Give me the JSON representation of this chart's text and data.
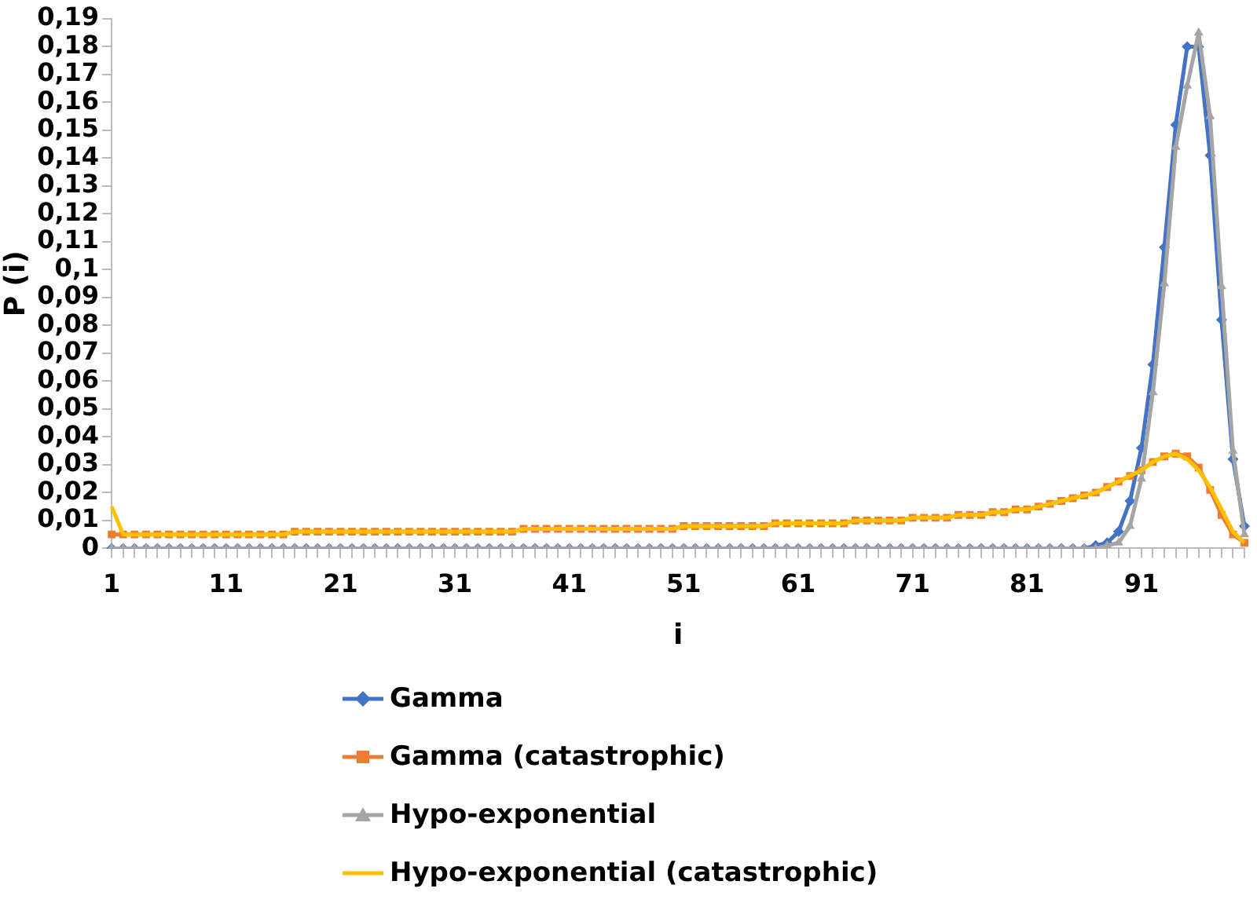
{
  "chart_data": {
    "type": "line",
    "xlabel": "i",
    "ylabel": "P (i)",
    "categories": [
      "1",
      null,
      null,
      null,
      null,
      null,
      null,
      null,
      null,
      null,
      "11",
      null,
      null,
      null,
      null,
      null,
      null,
      null,
      null,
      null,
      "21",
      null,
      null,
      null,
      null,
      null,
      null,
      null,
      null,
      null,
      "31",
      null,
      null,
      null,
      null,
      null,
      null,
      null,
      null,
      null,
      "41",
      null,
      null,
      null,
      null,
      null,
      null,
      null,
      null,
      null,
      "51",
      null,
      null,
      null,
      null,
      null,
      null,
      null,
      null,
      null,
      "61",
      null,
      null,
      null,
      null,
      null,
      null,
      null,
      null,
      null,
      "71",
      null,
      null,
      null,
      null,
      null,
      null,
      null,
      null,
      null,
      "81",
      null,
      null,
      null,
      null,
      null,
      null,
      null,
      null,
      null,
      "91",
      null,
      null,
      null,
      null,
      null,
      null,
      null,
      null,
      null
    ],
    "ylim": [
      0,
      0.19
    ],
    "yticks": [
      0,
      {
        "value": 0.01,
        "label": "0,01"
      },
      {
        "value": 0.02,
        "label": "0,02"
      },
      {
        "value": 0.03,
        "label": "0,03"
      },
      {
        "value": 0.04,
        "label": "0,04"
      },
      {
        "value": 0.05,
        "label": "0,05"
      },
      {
        "value": 0.06,
        "label": "0,06"
      },
      {
        "value": 0.07,
        "label": "0,07"
      },
      {
        "value": 0.08,
        "label": "0,08"
      },
      {
        "value": 0.09,
        "label": "0,09"
      },
      {
        "value": 0.1,
        "label": "0,1"
      },
      {
        "value": 0.11,
        "label": "0,11"
      },
      {
        "value": 0.12,
        "label": "0,12"
      },
      {
        "value": 0.13,
        "label": "0,13"
      },
      {
        "value": 0.14,
        "label": "0,14"
      },
      {
        "value": 0.15,
        "label": "0,15"
      },
      {
        "value": 0.16,
        "label": "0,16"
      },
      {
        "value": 0.17,
        "label": "0,17"
      },
      {
        "value": 0.18,
        "label": "0,18"
      },
      {
        "value": 0.19,
        "label": "0,19"
      }
    ],
    "grid": false,
    "legend": "bottom",
    "series": [
      {
        "name": "Gamma",
        "color": "#4472c4",
        "marker": "diamond",
        "values": [
          0,
          0,
          0,
          0,
          0,
          0,
          0,
          0,
          0,
          0,
          0,
          0,
          0,
          0,
          0,
          0,
          0,
          0,
          0,
          0,
          0,
          0,
          0,
          0,
          0,
          0,
          0,
          0,
          0,
          0,
          0,
          0,
          0,
          0,
          0,
          0,
          0,
          0,
          0,
          0,
          0,
          0,
          0,
          0,
          0,
          0,
          0,
          0,
          0,
          0,
          0,
          0,
          0,
          0,
          0,
          0,
          0,
          0,
          0,
          0,
          0,
          0,
          0,
          0,
          0,
          0,
          0,
          0,
          0,
          0,
          0,
          0,
          0,
          0,
          0,
          0,
          0,
          0,
          0,
          0,
          0,
          0,
          0,
          0,
          0,
          0,
          0.001,
          0.002,
          0.006,
          0.017,
          0.036,
          0.066,
          0.108,
          0.152,
          0.18,
          0.18,
          0.141,
          0.082,
          0.032,
          0.008
        ]
      },
      {
        "name": "Gamma (catastrophic)",
        "color": "#ed7d31",
        "marker": "square",
        "values": [
          0.005,
          0.005,
          0.005,
          0.005,
          0.005,
          0.005,
          0.005,
          0.005,
          0.005,
          0.005,
          0.005,
          0.005,
          0.005,
          0.005,
          0.005,
          0.005,
          0.006,
          0.006,
          0.006,
          0.006,
          0.006,
          0.006,
          0.006,
          0.006,
          0.006,
          0.006,
          0.006,
          0.006,
          0.006,
          0.006,
          0.006,
          0.006,
          0.006,
          0.006,
          0.006,
          0.006,
          0.007,
          0.007,
          0.007,
          0.007,
          0.007,
          0.007,
          0.007,
          0.007,
          0.007,
          0.007,
          0.007,
          0.007,
          0.007,
          0.007,
          0.008,
          0.008,
          0.008,
          0.008,
          0.008,
          0.008,
          0.008,
          0.008,
          0.009,
          0.009,
          0.009,
          0.009,
          0.009,
          0.009,
          0.009,
          0.01,
          0.01,
          0.01,
          0.01,
          0.01,
          0.011,
          0.011,
          0.011,
          0.011,
          0.012,
          0.012,
          0.012,
          0.013,
          0.013,
          0.014,
          0.014,
          0.015,
          0.016,
          0.017,
          0.018,
          0.019,
          0.02,
          0.022,
          0.024,
          0.026,
          0.028,
          0.031,
          0.033,
          0.034,
          0.033,
          0.029,
          0.021,
          0.012,
          0.005,
          0.002
        ]
      },
      {
        "name": "Hypo-exponential",
        "color": "#a5a5a5",
        "marker": "triangle",
        "values": [
          0,
          0,
          0,
          0,
          0,
          0,
          0,
          0,
          0,
          0,
          0,
          0,
          0,
          0,
          0,
          0,
          0,
          0,
          0,
          0,
          0,
          0,
          0,
          0,
          0,
          0,
          0,
          0,
          0,
          0,
          0,
          0,
          0,
          0,
          0,
          0,
          0,
          0,
          0,
          0,
          0,
          0,
          0,
          0,
          0,
          0,
          0,
          0,
          0,
          0,
          0,
          0,
          0,
          0,
          0,
          0,
          0,
          0,
          0,
          0,
          0,
          0,
          0,
          0,
          0,
          0,
          0,
          0,
          0,
          0,
          0,
          0,
          0,
          0,
          0,
          0,
          0,
          0,
          0,
          0,
          0,
          0,
          0,
          0,
          0,
          0,
          0,
          0.001,
          0.002,
          0.008,
          0.025,
          0.056,
          0.095,
          0.144,
          0.166,
          0.185,
          0.155,
          0.094,
          0.035,
          0.005
        ]
      },
      {
        "name": "Hypo-exponential (catastrophic)",
        "color": "#ffc000",
        "marker": "none",
        "values": [
          0.015,
          0.005,
          0.005,
          0.005,
          0.005,
          0.005,
          0.005,
          0.005,
          0.005,
          0.005,
          0.005,
          0.005,
          0.005,
          0.005,
          0.005,
          0.005,
          0.006,
          0.006,
          0.006,
          0.006,
          0.006,
          0.006,
          0.006,
          0.006,
          0.006,
          0.006,
          0.006,
          0.006,
          0.006,
          0.006,
          0.006,
          0.006,
          0.006,
          0.006,
          0.006,
          0.006,
          0.007,
          0.007,
          0.007,
          0.007,
          0.007,
          0.007,
          0.007,
          0.007,
          0.007,
          0.007,
          0.007,
          0.007,
          0.007,
          0.007,
          0.008,
          0.008,
          0.008,
          0.008,
          0.008,
          0.008,
          0.008,
          0.008,
          0.009,
          0.009,
          0.009,
          0.009,
          0.009,
          0.009,
          0.009,
          0.01,
          0.01,
          0.01,
          0.01,
          0.01,
          0.011,
          0.011,
          0.011,
          0.011,
          0.012,
          0.012,
          0.012,
          0.013,
          0.013,
          0.014,
          0.014,
          0.015,
          0.016,
          0.017,
          0.018,
          0.019,
          0.02,
          0.022,
          0.024,
          0.026,
          0.028,
          0.031,
          0.033,
          0.034,
          0.032,
          0.028,
          0.022,
          0.014,
          0.006,
          0.002
        ]
      }
    ]
  }
}
